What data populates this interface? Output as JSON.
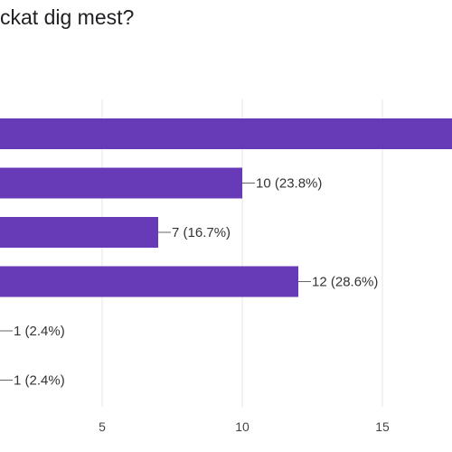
{
  "chart_data": {
    "type": "bar",
    "orientation": "horizontal",
    "title": "ckat dig mest?",
    "values": [
      18,
      10,
      7,
      12,
      1,
      1
    ],
    "data_labels": [
      "",
      "10 (23.8%)",
      "7 (16.7%)",
      "12 (28.6%)",
      "1 (2.4%)",
      "1 (2.4%)"
    ],
    "x_ticks": [
      "5",
      "10",
      "15"
    ],
    "x_tick_values": [
      5,
      10,
      15
    ],
    "xlim": [
      0,
      20
    ],
    "grid": true,
    "bar_color": "#673ab7"
  }
}
